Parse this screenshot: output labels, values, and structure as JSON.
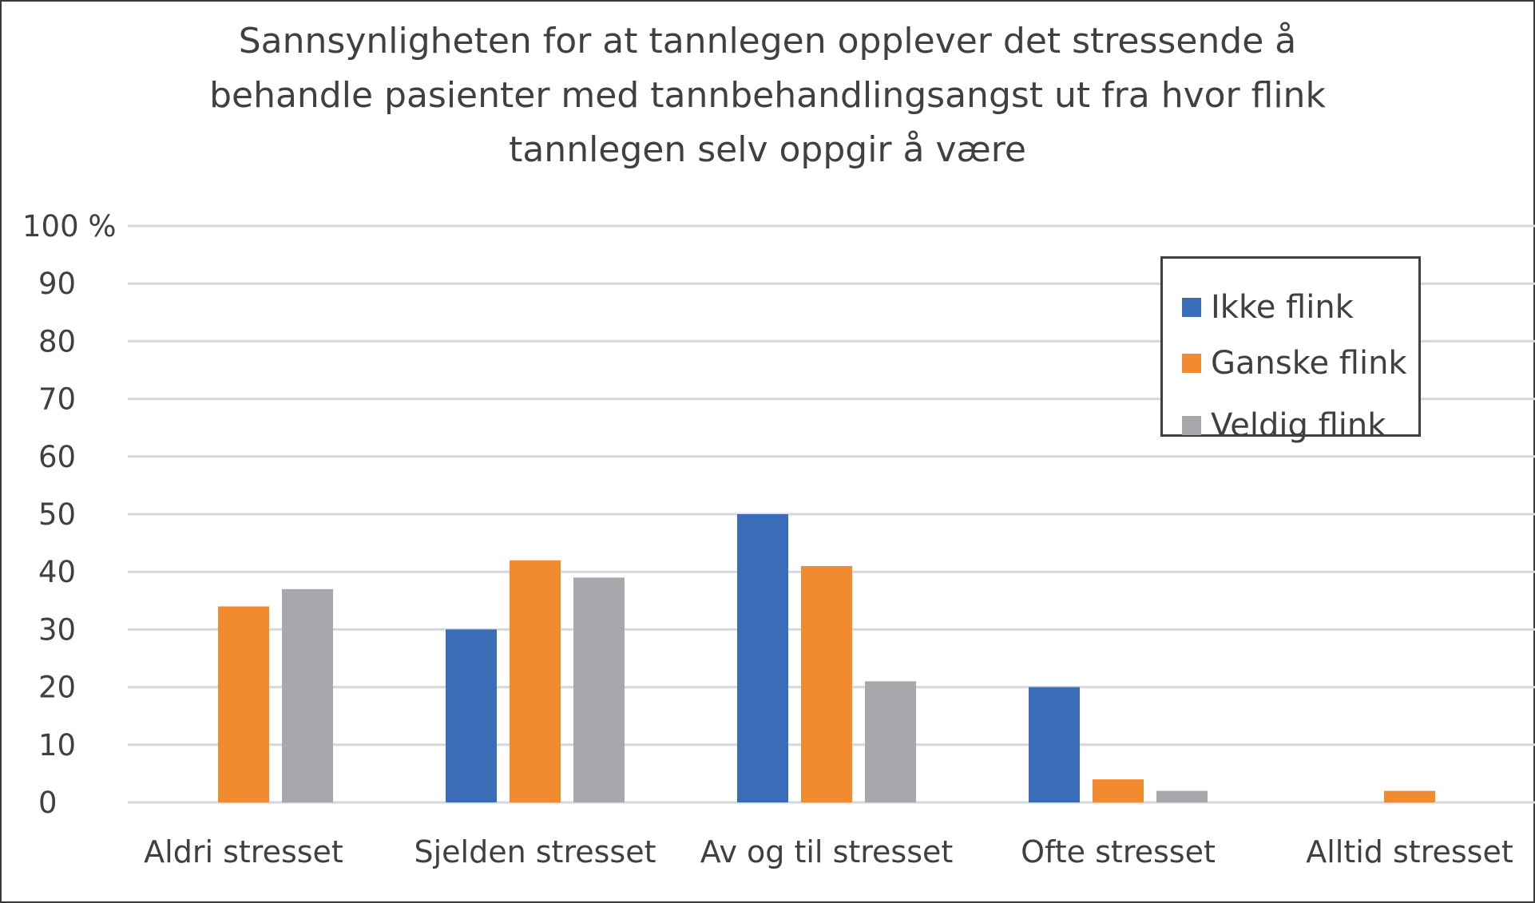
{
  "title_lines": [
    "Sannsynligheten  for at tannlegen opplever det stressende å",
    "behandle pasienter med tannbehandlingsangst ut fra hvor flink",
    "tannlegen selv oppgir å være"
  ],
  "colors": {
    "ikke_flink": "#3a6cb8",
    "ganske_flink": "#f28a30",
    "veldig_flink": "#a6a8ab",
    "grid": "#d4d7db",
    "text": "#404040"
  },
  "chart_data": {
    "type": "bar",
    "title": "Sannsynligheten  for at tannlegen opplever det stressende å behandle pasienter med tannbehandlingsangst ut fra hvor flink tannlegen selv oppgir å være",
    "categories": [
      "Aldri stresset",
      "Sjelden stresset",
      "Av og til stresset",
      "Ofte stresset",
      "Alltid stresset"
    ],
    "series": [
      {
        "name": "Ikke flink",
        "values": [
          0,
          30,
          50,
          20,
          0
        ]
      },
      {
        "name": "Ganske flink",
        "values": [
          34,
          42,
          41,
          4,
          2
        ]
      },
      {
        "name": "Veldig flink",
        "values": [
          37,
          39,
          21,
          2,
          0
        ]
      }
    ],
    "yticks": [
      "0",
      "10",
      "20",
      "30",
      "40",
      "50",
      "60",
      "70",
      "80",
      "90",
      "100 %"
    ],
    "ylim": [
      0,
      100
    ],
    "grid": true,
    "legend_position": "top-right"
  }
}
